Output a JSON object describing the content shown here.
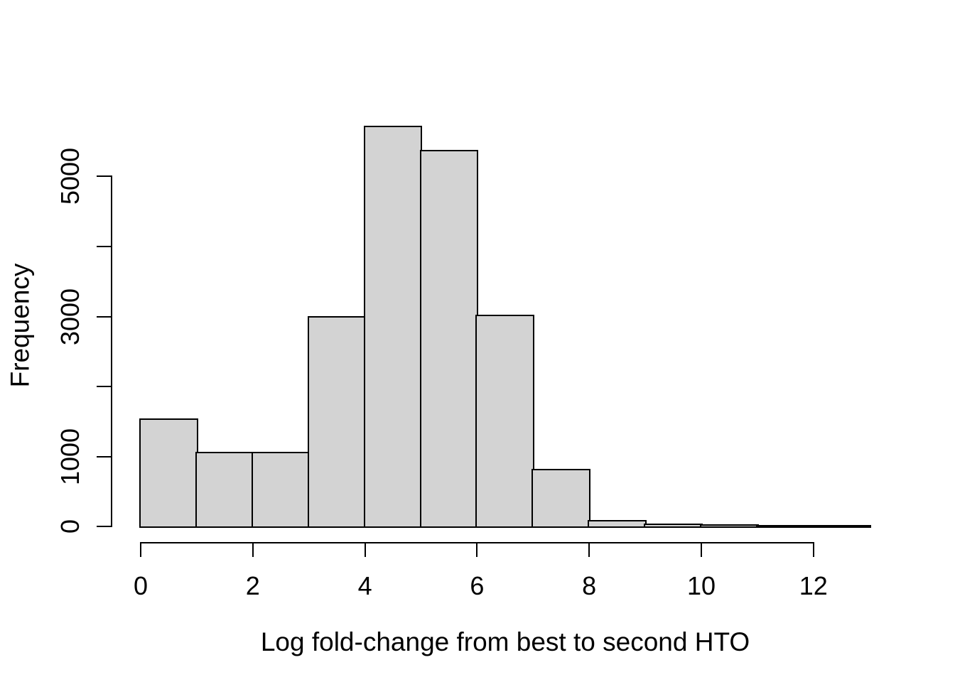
{
  "figure": {
    "background_color": "#FFFFFF",
    "bar_fill_color": "#D3D3D3",
    "bar_border_color": "#000000",
    "axis_color": "#000000",
    "text_color": "#000000"
  },
  "chart_data": {
    "type": "bar",
    "subtype": "histogram",
    "title": "",
    "xlabel": "Log fold-change from best to second HTO",
    "ylabel": "Frequency",
    "bin_breaks": [
      0,
      1,
      2,
      3,
      4,
      5,
      6,
      7,
      8,
      9,
      10,
      11,
      12,
      13
    ],
    "counts": [
      1520,
      1050,
      1045,
      2980,
      5700,
      5355,
      3005,
      800,
      75,
      25,
      10,
      6,
      4
    ],
    "x_ticks": [
      {
        "value": 0,
        "label": "0"
      },
      {
        "value": 2,
        "label": "2"
      },
      {
        "value": 4,
        "label": "4"
      },
      {
        "value": 6,
        "label": "6"
      },
      {
        "value": 8,
        "label": "8"
      },
      {
        "value": 10,
        "label": "10"
      },
      {
        "value": 12,
        "label": "12"
      }
    ],
    "y_ticks": [
      {
        "value": 0,
        "label": "0"
      },
      {
        "value": 1000,
        "label": "1000"
      },
      {
        "value": 2000,
        "label": ""
      },
      {
        "value": 3000,
        "label": "3000"
      },
      {
        "value": 4000,
        "label": ""
      },
      {
        "value": 5000,
        "label": "5000"
      }
    ],
    "xlim": [
      0,
      13
    ],
    "ylim": [
      0,
      5700
    ],
    "grid": false,
    "legend": null
  }
}
